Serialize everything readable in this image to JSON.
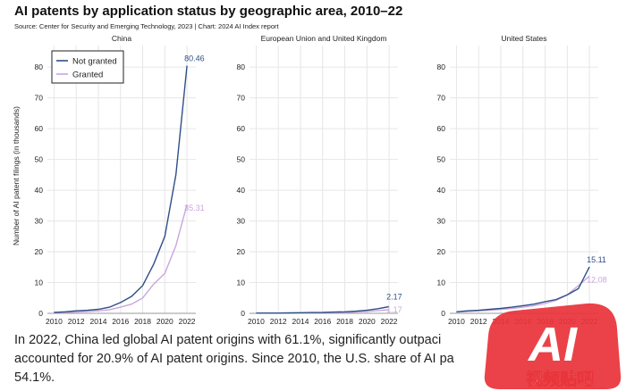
{
  "header": {
    "title": "AI patents by application status by geographic area, 2010–22",
    "source": "Source: Center for Security and Emerging Technology, 2023 | Chart: 2024 AI Index report"
  },
  "chart_data": {
    "type": "line",
    "title": "AI patents by application status by geographic area, 2010–22",
    "ylabel": "Number of AI patent filings (in thousands)",
    "xlabel": "",
    "ylim": [
      0,
      87
    ],
    "yticks": [
      "0",
      "10",
      "20",
      "30",
      "40",
      "50",
      "60",
      "70",
      "80"
    ],
    "xticks": [
      "2010",
      "2012",
      "2014",
      "2016",
      "2018",
      "2020",
      "2022"
    ],
    "legend": {
      "position": "top-left",
      "entries": [
        "Not granted",
        "Granted"
      ]
    },
    "colors": {
      "not_granted": "#2f4f86",
      "granted": "#c9a6dd",
      "grid": "#e6e6e6"
    },
    "panels": [
      {
        "name": "China",
        "x": [
          2010,
          2011,
          2012,
          2013,
          2014,
          2015,
          2016,
          2017,
          2018,
          2019,
          2020,
          2021,
          2022
        ],
        "series": [
          {
            "name": "Not granted",
            "values": [
              0.3,
              0.5,
              0.8,
              1.0,
              1.3,
              2.0,
              3.5,
              5.5,
              9.0,
              16.0,
              25.0,
              45.0,
              80.46
            ],
            "end_label": "80.46"
          },
          {
            "name": "Granted",
            "values": [
              0.2,
              0.3,
              0.4,
              0.6,
              0.8,
              1.2,
              2.0,
              3.0,
              5.0,
              9.5,
              13.0,
              22.0,
              35.31
            ],
            "end_label": "35.31"
          }
        ]
      },
      {
        "name": "European Union and United Kingdom",
        "x": [
          2010,
          2011,
          2012,
          2013,
          2014,
          2015,
          2016,
          2017,
          2018,
          2019,
          2020,
          2021,
          2022
        ],
        "series": [
          {
            "name": "Not granted",
            "values": [
              0.1,
              0.1,
              0.1,
              0.15,
              0.2,
              0.25,
              0.3,
              0.4,
              0.5,
              0.7,
              1.0,
              1.5,
              2.17
            ],
            "end_label": "2.17"
          },
          {
            "name": "Granted",
            "values": [
              0.05,
              0.05,
              0.05,
              0.08,
              0.1,
              0.12,
              0.15,
              0.2,
              0.3,
              0.4,
              0.6,
              0.9,
              1.17
            ],
            "end_label": "1.17"
          }
        ]
      },
      {
        "name": "United States",
        "x": [
          2010,
          2011,
          2012,
          2013,
          2014,
          2015,
          2016,
          2017,
          2018,
          2019,
          2020,
          2021,
          2022
        ],
        "series": [
          {
            "name": "Not granted",
            "values": [
              0.5,
              0.8,
              1.0,
              1.3,
              1.6,
              2.0,
              2.5,
              3.0,
              3.8,
              4.5,
              6.0,
              8.0,
              15.11
            ],
            "end_label": "15.11"
          },
          {
            "name": "Granted",
            "values": [
              0.4,
              0.6,
              0.8,
              1.0,
              1.3,
              1.6,
              2.0,
              2.5,
              3.2,
              4.2,
              6.0,
              9.0,
              12.08
            ],
            "end_label": "12.08"
          }
        ]
      }
    ]
  },
  "caption": {
    "line1": "In 2022, China led global AI patent origins with 61.1%, significantly outpaci",
    "line2": "accounted for 20.9% of AI patent origins. Since 2010, the U.S. share of AI pa",
    "line3": "54.1%."
  },
  "watermark": {
    "badge_text": "AI",
    "channel_text": "视频贴吧",
    "badge_color": "#e8343a"
  }
}
